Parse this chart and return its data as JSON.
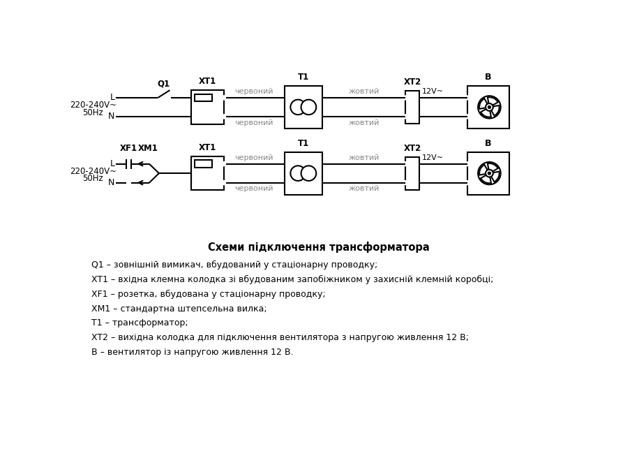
{
  "bg_color": "#ffffff",
  "line_color": "#000000",
  "wire_color": "#888888",
  "text_color": "#000000",
  "title": "Схеми підключення трансформатора",
  "legend_lines": [
    "Q1 – зовнішній вимикач, вбудований у стаціонарну проводку;",
    "XT1 – вхідна клемна колодка зі вбудованим запобіжником у захисній клемній коробці;",
    "XF1 – розетка, вбудована у стаціонарну проводку;",
    "XM1 – стандартна штепсельна вилка;",
    "T1 – трансформатор;",
    "XT2 – вихідна колодка для підключення вентилятора з напругою живлення 12 В;",
    "B – вентилятор із напругою живлення 12 В."
  ],
  "wire_label_red": "червоний",
  "wire_label_yellow": "жовтий",
  "label_12V": "12V~",
  "label_voltage": "220-240V~",
  "label_freq": "50Hz",
  "label_L": "L",
  "label_N": "N",
  "label_Q1": "Q1",
  "label_XT1": "XT1",
  "label_T1": "T1",
  "label_XT2": "XT2",
  "label_B": "B",
  "label_XF1": "XF1",
  "label_XM1": "XM1"
}
